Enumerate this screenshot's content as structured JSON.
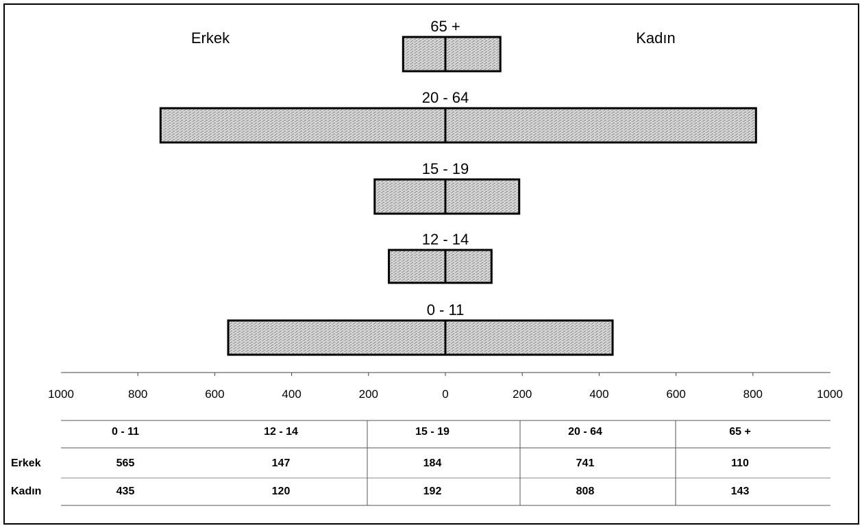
{
  "chart_data": {
    "type": "bar",
    "orientation": "horizontal-population-pyramid",
    "left_label": "Erkek",
    "right_label": "Kadın",
    "categories": [
      "0 - 11",
      "12 - 14",
      "15 - 19",
      "20 - 64",
      "65 +"
    ],
    "series": [
      {
        "name": "Erkek",
        "values": [
          565,
          147,
          184,
          741,
          110
        ]
      },
      {
        "name": "Kadın",
        "values": [
          435,
          120,
          192,
          808,
          143
        ]
      }
    ],
    "xlim": [
      -1000,
      1000
    ],
    "ticks": [
      "1000",
      "800",
      "600",
      "400",
      "200",
      "0",
      "200",
      "400",
      "600",
      "800",
      "1000"
    ],
    "bar_fill": "#c8c8c8",
    "table": {
      "headers": [
        "0 - 11",
        "12 - 14",
        "15 - 19",
        "20  - 64",
        "65 +"
      ],
      "rows": [
        {
          "label": "Erkek",
          "values": [
            "565",
            "147",
            "184",
            "741",
            "110"
          ]
        },
        {
          "label": "Kadın",
          "values": [
            "435",
            "120",
            "192",
            "808",
            "143"
          ]
        }
      ]
    }
  }
}
